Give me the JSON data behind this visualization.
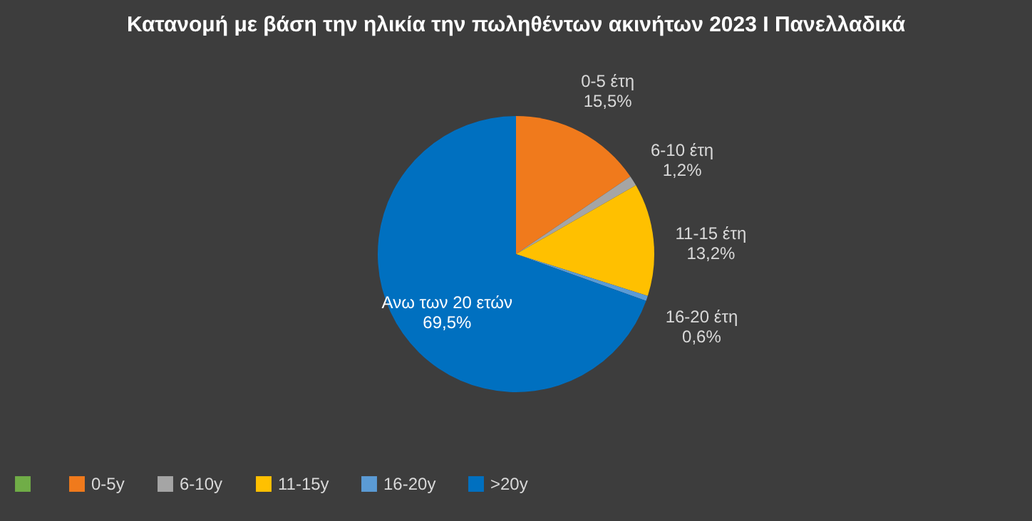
{
  "chart_data": {
    "type": "pie",
    "title": "Κατανομή με βάση την ηλικία την πωληθέντων ακινήτων 2023 I Πανελλαδικά",
    "categories": [
      null,
      "0-5y",
      "6-10y",
      "11-15y",
      "16-20y",
      ">20y"
    ],
    "values": [
      0,
      15.5,
      1.2,
      13.2,
      0.6,
      69.5
    ],
    "colors": [
      "#70ad47",
      "#f07a1c",
      "#a5a5a5",
      "#ffc000",
      "#5b9bd5",
      "#0070c0"
    ],
    "value_labels": [
      null,
      "0-5 έτη\n15,5%",
      "6-10 έτη\n1,2%",
      "11-15 έτη\n13,2%",
      "16-20 έτη\n0,6%",
      "Ανω των 20 ετών\n69,5%"
    ],
    "legend": "bottom"
  }
}
